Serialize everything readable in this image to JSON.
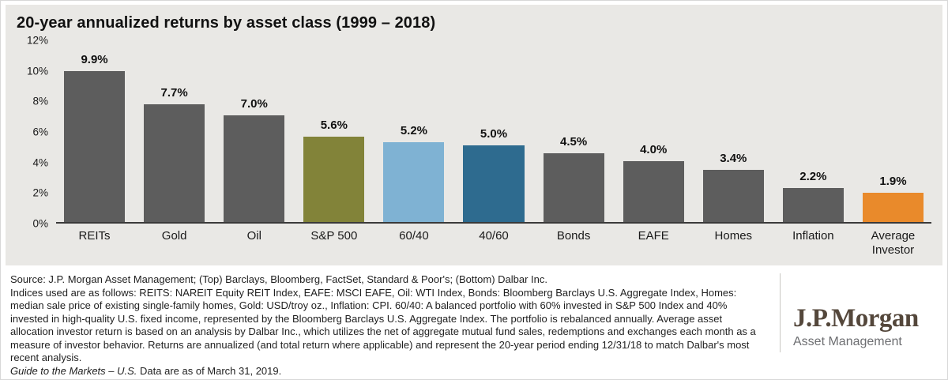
{
  "chart_data": {
    "type": "bar",
    "title": "20-year annualized returns by asset class (1999 – 2018)",
    "categories": [
      "REITs",
      "Gold",
      "Oil",
      "S&P 500",
      "60/40",
      "40/60",
      "Bonds",
      "EAFE",
      "Homes",
      "Inflation",
      "Average Investor"
    ],
    "values": [
      9.9,
      7.7,
      7.0,
      5.6,
      5.2,
      5.0,
      4.5,
      4.0,
      3.4,
      2.2,
      1.9
    ],
    "labels": [
      "9.9%",
      "7.7%",
      "7.0%",
      "5.6%",
      "5.2%",
      "5.0%",
      "4.5%",
      "4.0%",
      "3.4%",
      "2.2%",
      "1.9%"
    ],
    "bar_colors": [
      "#5d5d5d",
      "#5d5d5d",
      "#5d5d5d",
      "#828339",
      "#7fb2d3",
      "#2e6b8f",
      "#5d5d5d",
      "#5d5d5d",
      "#5d5d5d",
      "#5d5d5d",
      "#e98a2b"
    ],
    "ylim": [
      0,
      12
    ],
    "yticks": [
      "12%",
      "10%",
      "8%",
      "6%",
      "4%",
      "2%",
      "0%"
    ],
    "grid": false,
    "legend": "none",
    "plot_background": "#e9e8e5"
  },
  "colors": {
    "panel_background": "#e9e8e5",
    "default_bar": "#5d5d5d",
    "sp500_bar": "#828339",
    "sixty_forty_bar": "#7fb2d3",
    "forty_sixty_bar": "#2e6b8f",
    "average_investor_bar": "#e98a2b",
    "logo_wordmark": "#54473b"
  },
  "footer": {
    "source_line": "Source: J.P. Morgan Asset Management; (Top) Barclays, Bloomberg, FactSet, Standard & Poor's; (Bottom) Dalbar Inc.",
    "body": "Indices used are as follows: REITS: NAREIT Equity REIT Index, EAFE: MSCI EAFE, Oil: WTI Index, Bonds: Bloomberg Barclays U.S. Aggregate Index, Homes: median sale price of existing single-family homes, Gold: USD/troy oz., Inflation: CPI. 60/40: A balanced portfolio with 60% invested in S&P 500 Index and 40% invested in high-quality U.S. fixed income, represented by the Bloomberg Barclays U.S. Aggregate Index. The portfolio is rebalanced annually. Average asset allocation investor return is based on an analysis by Dalbar Inc., which utilizes the net of aggregate mutual fund sales, redemptions and exchanges each month as a measure of investor behavior. Returns are annualized (and total return where applicable) and represent the 20-year period ending 12/31/18 to match Dalbar's most recent analysis.",
    "guide_italic": "Guide to the Markets – U.S.",
    "guide_rest": " Data are as of March 31, 2019."
  },
  "logo": {
    "wordmark": "J.P.Morgan",
    "subtitle": "Asset Management"
  }
}
